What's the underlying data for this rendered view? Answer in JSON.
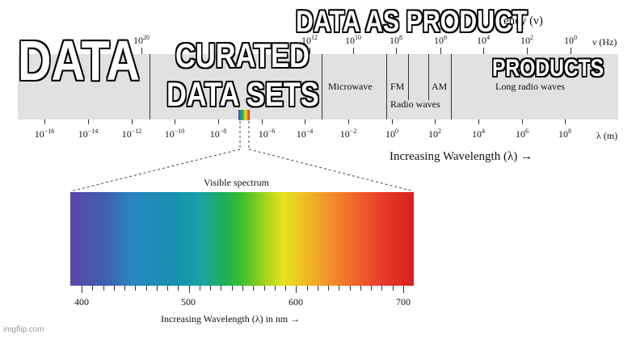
{
  "frequency_axis": {
    "title": "ency (ν)",
    "unit": "ν (Hz)",
    "ticks": [
      {
        "base": "10",
        "exp": "20"
      },
      {
        "base": "10",
        "exp": "12"
      },
      {
        "base": "10",
        "exp": "10"
      },
      {
        "base": "10",
        "exp": "8"
      },
      {
        "base": "10",
        "exp": "6"
      },
      {
        "base": "10",
        "exp": "4"
      },
      {
        "base": "10",
        "exp": "2"
      },
      {
        "base": "10",
        "exp": "0"
      }
    ]
  },
  "regions": {
    "microwave": "Microwave",
    "fm": "FM",
    "am": "AM",
    "radio_waves": "Radio waves",
    "long_radio_waves": "Long radio waves"
  },
  "wavelength_axis": {
    "unit": "λ (m)",
    "title": "Increasing Wavelength (λ) →",
    "ticks": [
      {
        "base": "10",
        "exp": "−16"
      },
      {
        "base": "10",
        "exp": "−14"
      },
      {
        "base": "10",
        "exp": "−12"
      },
      {
        "base": "10",
        "exp": "−10"
      },
      {
        "base": "10",
        "exp": "−8"
      },
      {
        "base": "10",
        "exp": "−6"
      },
      {
        "base": "10",
        "exp": "−4"
      },
      {
        "base": "10",
        "exp": "−2"
      },
      {
        "base": "10",
        "exp": "0"
      },
      {
        "base": "10",
        "exp": "2"
      },
      {
        "base": "10",
        "exp": "4"
      },
      {
        "base": "10",
        "exp": "6"
      },
      {
        "base": "10",
        "exp": "8"
      }
    ]
  },
  "visible": {
    "title": "Visible spectrum",
    "axis_title": "Increasing Wavelength (λ) in nm →",
    "ticks": [
      "400",
      "500",
      "600",
      "700"
    ]
  },
  "meme_labels": {
    "data": "DATA",
    "curated_line1": "CURATED",
    "curated_line2": "DATA SETS",
    "data_as_product": "DATA AS PRODUCT",
    "products": "PRODUCTS"
  },
  "watermark": "imgflip.com",
  "colors": {
    "band": "#e1e1e1",
    "meme_text": "#ffffff",
    "meme_outline": "#000000"
  }
}
